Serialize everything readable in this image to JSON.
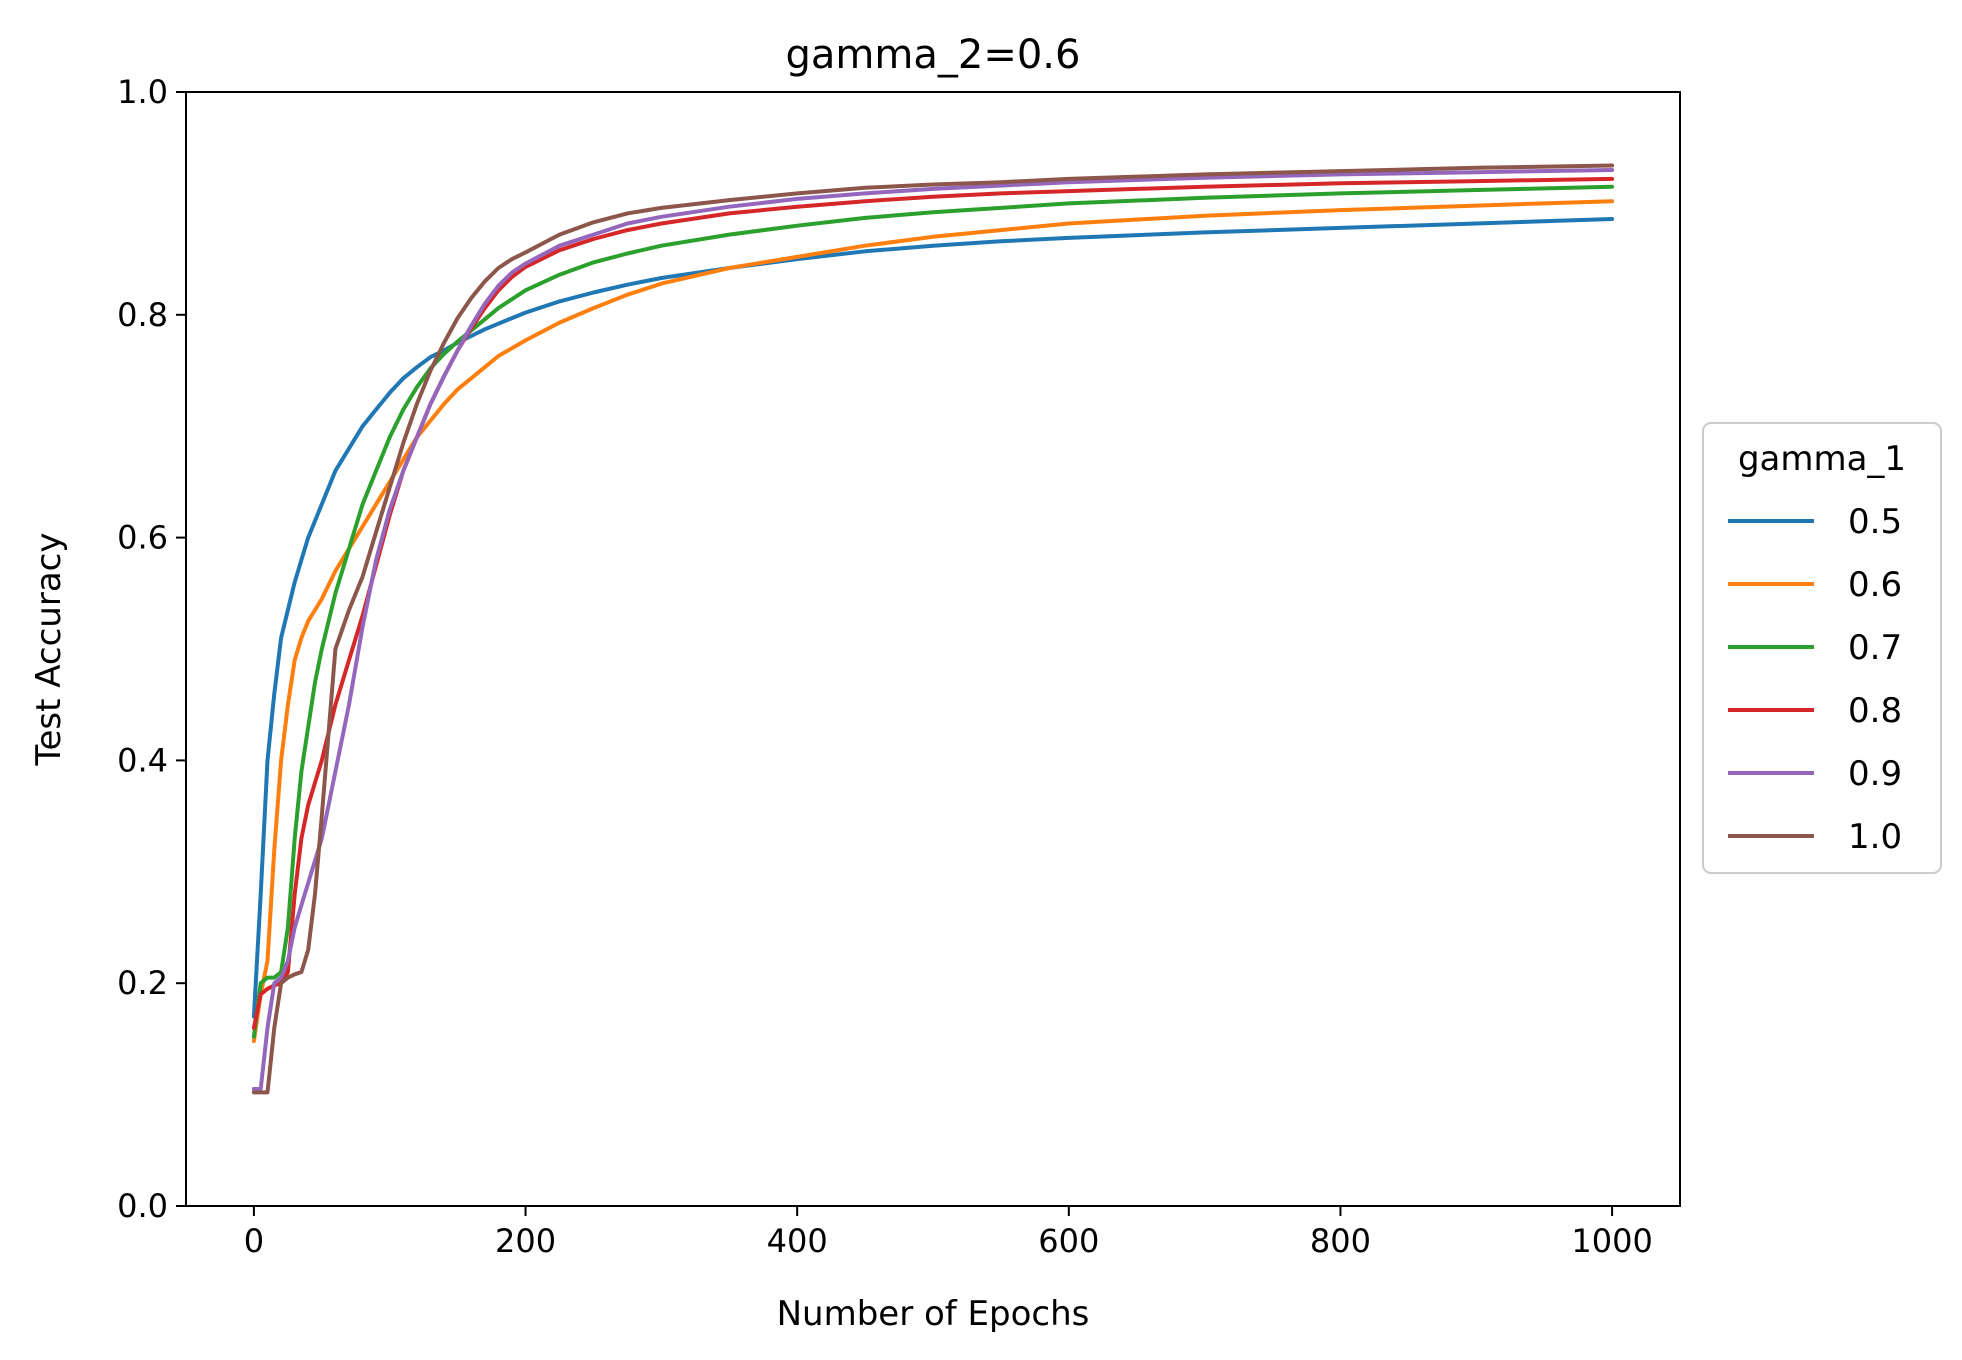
{
  "chart_data": {
    "type": "line",
    "title": "gamma_2=0.6",
    "xlabel": "Number of Epochs",
    "ylabel": "Test Accuracy",
    "xlim": [
      -50,
      1050
    ],
    "ylim": [
      0.0,
      1.0
    ],
    "xticks": [
      0,
      200,
      400,
      600,
      800,
      1000
    ],
    "xtick_labels": [
      "0",
      "200",
      "400",
      "600",
      "800",
      "1000"
    ],
    "yticks": [
      0.0,
      0.2,
      0.4,
      0.6,
      0.8,
      1.0
    ],
    "ytick_labels": [
      "0.0",
      "0.2",
      "0.4",
      "0.6",
      "0.8",
      "1.0"
    ],
    "grid": false,
    "legend": {
      "title": "gamma_1",
      "placement": "outside-right"
    },
    "x": [
      0,
      5,
      10,
      15,
      20,
      25,
      30,
      35,
      40,
      45,
      50,
      60,
      70,
      80,
      90,
      100,
      110,
      120,
      130,
      140,
      150,
      160,
      170,
      180,
      190,
      200,
      225,
      250,
      275,
      300,
      350,
      400,
      450,
      500,
      550,
      600,
      700,
      800,
      900,
      1000
    ],
    "series": [
      {
        "name": "0.5",
        "color": "#1f77b4",
        "values": [
          0.17,
          0.28,
          0.4,
          0.46,
          0.51,
          0.535,
          0.56,
          0.58,
          0.6,
          0.615,
          0.63,
          0.66,
          0.68,
          0.7,
          0.715,
          0.73,
          0.743,
          0.753,
          0.762,
          0.768,
          0.775,
          0.781,
          0.787,
          0.792,
          0.797,
          0.802,
          0.812,
          0.82,
          0.827,
          0.833,
          0.842,
          0.85,
          0.857,
          0.862,
          0.866,
          0.869,
          0.874,
          0.878,
          0.882,
          0.886
        ]
      },
      {
        "name": "0.6",
        "color": "#ff7f0e",
        "values": [
          0.148,
          0.19,
          0.22,
          0.32,
          0.4,
          0.45,
          0.49,
          0.51,
          0.525,
          0.535,
          0.545,
          0.57,
          0.59,
          0.61,
          0.63,
          0.65,
          0.67,
          0.69,
          0.705,
          0.72,
          0.733,
          0.743,
          0.753,
          0.763,
          0.77,
          0.777,
          0.793,
          0.806,
          0.818,
          0.828,
          0.842,
          0.852,
          0.862,
          0.87,
          0.876,
          0.882,
          0.889,
          0.894,
          0.898,
          0.902
        ]
      },
      {
        "name": "0.7",
        "color": "#2ca02c",
        "values": [
          0.152,
          0.2,
          0.205,
          0.205,
          0.21,
          0.25,
          0.33,
          0.39,
          0.43,
          0.47,
          0.5,
          0.55,
          0.59,
          0.63,
          0.66,
          0.69,
          0.715,
          0.735,
          0.752,
          0.765,
          0.776,
          0.786,
          0.796,
          0.806,
          0.814,
          0.822,
          0.836,
          0.847,
          0.855,
          0.862,
          0.872,
          0.88,
          0.887,
          0.892,
          0.896,
          0.9,
          0.905,
          0.909,
          0.912,
          0.915
        ]
      },
      {
        "name": "0.8",
        "color": "#d62728",
        "values": [
          0.16,
          0.19,
          0.195,
          0.198,
          0.2,
          0.21,
          0.28,
          0.33,
          0.36,
          0.38,
          0.4,
          0.45,
          0.49,
          0.53,
          0.575,
          0.62,
          0.66,
          0.69,
          0.72,
          0.745,
          0.768,
          0.788,
          0.806,
          0.822,
          0.834,
          0.843,
          0.858,
          0.868,
          0.876,
          0.882,
          0.891,
          0.897,
          0.902,
          0.906,
          0.909,
          0.911,
          0.915,
          0.918,
          0.92,
          0.922
        ]
      },
      {
        "name": "0.9",
        "color": "#9467bd",
        "values": [
          0.105,
          0.105,
          0.16,
          0.2,
          0.205,
          0.22,
          0.25,
          0.27,
          0.29,
          0.31,
          0.33,
          0.39,
          0.45,
          0.52,
          0.58,
          0.625,
          0.66,
          0.69,
          0.72,
          0.745,
          0.768,
          0.79,
          0.81,
          0.826,
          0.838,
          0.846,
          0.862,
          0.872,
          0.882,
          0.888,
          0.897,
          0.904,
          0.909,
          0.913,
          0.916,
          0.919,
          0.923,
          0.926,
          0.928,
          0.93
        ]
      },
      {
        "name": "1.0",
        "color": "#8c564b",
        "values": [
          0.102,
          0.102,
          0.102,
          0.16,
          0.2,
          0.205,
          0.208,
          0.21,
          0.23,
          0.28,
          0.35,
          0.5,
          0.535,
          0.565,
          0.605,
          0.645,
          0.685,
          0.72,
          0.75,
          0.775,
          0.797,
          0.815,
          0.83,
          0.842,
          0.85,
          0.856,
          0.872,
          0.883,
          0.891,
          0.896,
          0.903,
          0.909,
          0.914,
          0.917,
          0.919,
          0.922,
          0.926,
          0.929,
          0.932,
          0.934
        ]
      }
    ]
  }
}
